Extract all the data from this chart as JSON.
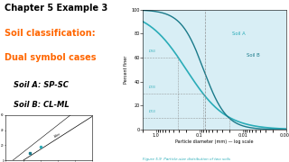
{
  "title_line1": "Chapter 5 Example 3",
  "title_line2": "Soil classification:",
  "title_line3": "Dual symbol cases",
  "soil_a_label": "Soil A: SP-SC",
  "soil_b_label": "Soil B: CL-ML",
  "title_color": "#000000",
  "subtitle_color": "#FF6600",
  "soil_label_color": "#000000",
  "bg_color": "#FFFFFF",
  "chart_bg_color": "#D8EEF5",
  "curve_color_a": "#2AACB8",
  "curve_color_b": "#1A7A8A",
  "fig_caption": "Figure 5.9  Particle-size distribution of two soils",
  "caption_color": "#2AACB8",
  "no200_color": "#888888",
  "dline_color": "#888888",
  "d_label_color": "#2AACB8"
}
